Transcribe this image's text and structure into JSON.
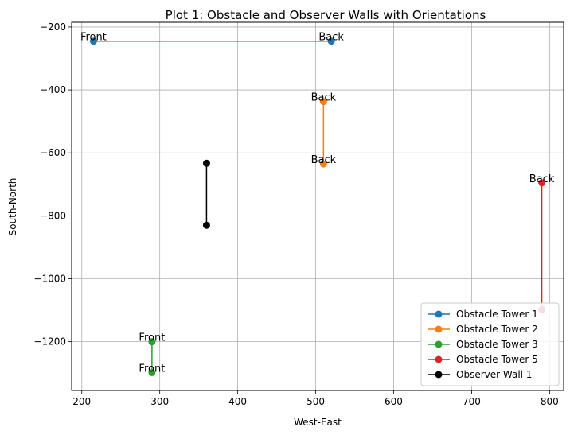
{
  "chart_data": {
    "type": "line",
    "title": "Plot 1: Obstacle and Observer Walls with Orientations",
    "xlabel": "West-East",
    "ylabel": "South-North",
    "xlim": [
      187,
      818
    ],
    "ylim": [
      -1355,
      -185
    ],
    "xticks": [
      200,
      300,
      400,
      500,
      600,
      700,
      800
    ],
    "yticks": [
      -1200,
      -1000,
      -800,
      -600,
      -400,
      -200
    ],
    "xtick_labels": [
      "200",
      "300",
      "400",
      "500",
      "600",
      "700",
      "800"
    ],
    "ytick_labels": [
      "−1200",
      "−1000",
      "−800",
      "−600",
      "−400",
      "−200"
    ],
    "grid": true,
    "legend_position": "lower-right",
    "series": [
      {
        "name": "Obstacle Tower 1",
        "color": "#1f77b4",
        "points": [
          [
            215,
            -245
          ],
          [
            520,
            -245
          ]
        ]
      },
      {
        "name": "Obstacle Tower 2",
        "color": "#ff7f0e",
        "points": [
          [
            510,
            -437
          ],
          [
            510,
            -635
          ]
        ]
      },
      {
        "name": "Obstacle Tower 3",
        "color": "#2ca02c",
        "points": [
          [
            290,
            -1200
          ],
          [
            290,
            -1298
          ]
        ]
      },
      {
        "name": "Obstacle Tower 5",
        "color": "#d62728",
        "points": [
          [
            790,
            -695
          ],
          [
            790,
            -1098
          ]
        ]
      },
      {
        "name": "Observer Wall 1",
        "color": "#000000",
        "points": [
          [
            360,
            -633
          ],
          [
            360,
            -830
          ]
        ]
      }
    ],
    "annotations": [
      {
        "text": "Front",
        "x": 215,
        "y": -245
      },
      {
        "text": "Back",
        "x": 520,
        "y": -245
      },
      {
        "text": "Back",
        "x": 510,
        "y": -437
      },
      {
        "text": "Back",
        "x": 510,
        "y": -635
      },
      {
        "text": "Front",
        "x": 290,
        "y": -1200
      },
      {
        "text": "Front",
        "x": 290,
        "y": -1298
      },
      {
        "text": "Back",
        "x": 790,
        "y": -695
      }
    ]
  }
}
